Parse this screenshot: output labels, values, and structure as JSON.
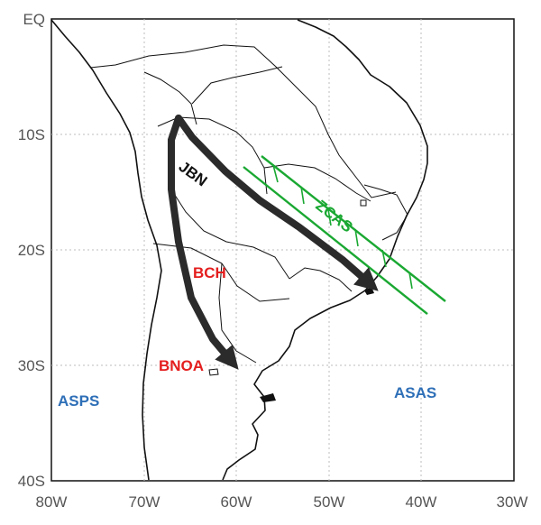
{
  "map": {
    "y_ticks": [
      "EQ",
      "10S",
      "20S",
      "30S",
      "40S"
    ],
    "x_ticks": [
      "80W",
      "70W",
      "60W",
      "50W",
      "40W",
      "30W"
    ],
    "labels": {
      "jbn": "JBN",
      "zcas": "ZCAS",
      "bch": "BCH",
      "bnoa": "BNOA",
      "asps": "ASPS",
      "asas": "ASAS"
    },
    "colors": {
      "jbn": "#111111",
      "zcas": "#1aa832",
      "bch": "#e41e1e",
      "bnoa": "#e41e1e",
      "asps": "#2e6fb7",
      "asas": "#2e6fb7",
      "arrows": "#2b2b2b",
      "coastline": "#111111",
      "grid": "#bdbdbd"
    },
    "extent": {
      "lon": [
        -80,
        -30
      ],
      "lat": [
        -40,
        0
      ]
    },
    "grid_spacing_deg": 10,
    "features": [
      "low-level jet arrow",
      "ZCAS convergence band",
      "continent outline"
    ]
  }
}
